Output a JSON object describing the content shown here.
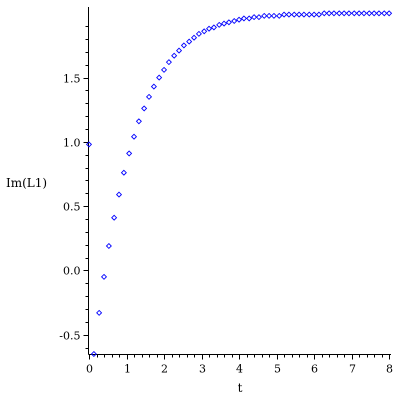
{
  "chart_data": {
    "type": "scatter",
    "title": "",
    "xlabel": "t",
    "ylabel": "Im(L1)",
    "xlim": [
      0,
      8.05
    ],
    "ylim": [
      -0.65,
      2.01
    ],
    "x_ticks": [
      0,
      1,
      2,
      3,
      4,
      5,
      6,
      7,
      8
    ],
    "x_tick_labels": [
      "0",
      "1",
      "2",
      "3",
      "4",
      "5",
      "6",
      "7",
      "8"
    ],
    "y_ticks": [
      -0.5,
      0.0,
      0.5,
      1.0,
      1.5
    ],
    "y_tick_labels": [
      "-0.5",
      "0.0",
      "0.5",
      "1.0",
      "1.5"
    ],
    "grid": false,
    "marker": "diamond",
    "series": [
      {
        "color": "#0000ff",
        "x": [
          0.0,
          0.13,
          0.27,
          0.4,
          0.53,
          0.67,
          0.8,
          0.93,
          1.07,
          1.2,
          1.33,
          1.47,
          1.6,
          1.73,
          1.87,
          2.0,
          2.13,
          2.27,
          2.4,
          2.53,
          2.67,
          2.8,
          2.93,
          3.07,
          3.2,
          3.33,
          3.47,
          3.6,
          3.73,
          3.87,
          4.0,
          4.13,
          4.27,
          4.4,
          4.53,
          4.67,
          4.8,
          4.93,
          5.07,
          5.2,
          5.33,
          5.47,
          5.6,
          5.73,
          5.87,
          6.0,
          6.13,
          6.27,
          6.4,
          6.53,
          6.67,
          6.8,
          6.93,
          7.07,
          7.2,
          7.33,
          7.47,
          7.6,
          7.73,
          7.87,
          8.0
        ],
        "y": [
          0.98,
          -0.65,
          -0.33,
          -0.05,
          0.19,
          0.41,
          0.59,
          0.76,
          0.91,
          1.04,
          1.16,
          1.26,
          1.35,
          1.43,
          1.5,
          1.56,
          1.62,
          1.67,
          1.71,
          1.75,
          1.78,
          1.81,
          1.84,
          1.86,
          1.88,
          1.89,
          1.91,
          1.92,
          1.93,
          1.94,
          1.95,
          1.96,
          1.96,
          1.97,
          1.97,
          1.98,
          1.98,
          1.98,
          1.98,
          1.99,
          1.99,
          1.99,
          1.99,
          1.99,
          1.99,
          1.99,
          1.99,
          2.0,
          2.0,
          2.0,
          2.0,
          2.0,
          2.0,
          2.0,
          2.0,
          2.0,
          2.0,
          2.0,
          2.0,
          2.0,
          2.0
        ]
      }
    ]
  }
}
